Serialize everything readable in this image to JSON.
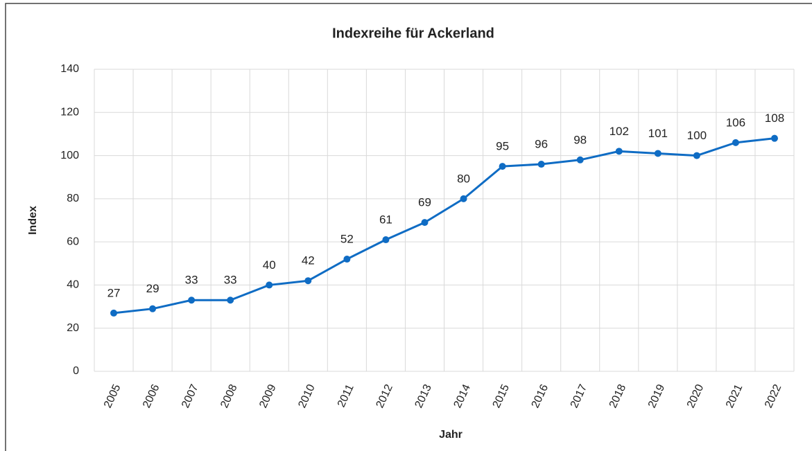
{
  "chart_data": {
    "type": "line",
    "title": "Indexreihe für Ackerland",
    "x_label": "Jahr",
    "y_label": "Index",
    "categories": [
      "2005",
      "2006",
      "2007",
      "2008",
      "2009",
      "2010",
      "2011",
      "2012",
      "2013",
      "2014",
      "2015",
      "2016",
      "2017",
      "2018",
      "2019",
      "2020",
      "2021",
      "2022"
    ],
    "values": [
      27,
      29,
      33,
      33,
      40,
      42,
      52,
      61,
      69,
      80,
      95,
      96,
      98,
      102,
      101,
      100,
      106,
      108
    ],
    "color": "#0f6cc4",
    "ylim": [
      0,
      140
    ],
    "yticks": [
      0,
      20,
      40,
      60,
      80,
      100,
      120,
      140
    ],
    "grid": true
  }
}
